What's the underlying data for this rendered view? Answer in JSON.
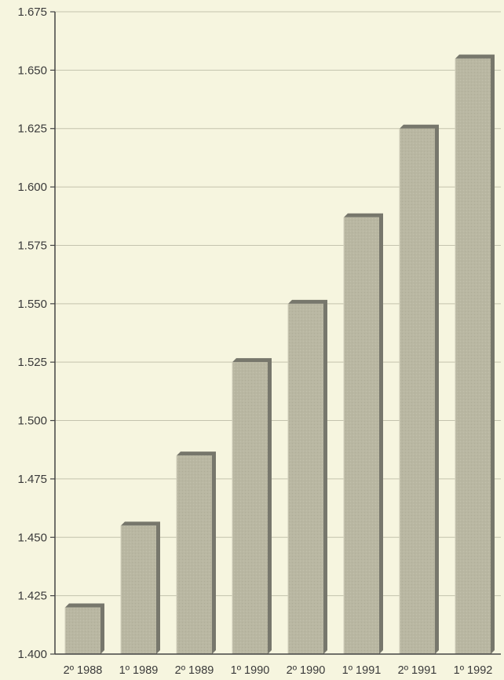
{
  "chart_data": {
    "type": "bar",
    "categories": [
      "2º 1988",
      "1º 1989",
      "2º 1989",
      "1º 1990",
      "2º 1990",
      "1º 1991",
      "2º 1991",
      "1º 1992"
    ],
    "values": [
      1420,
      1455,
      1485,
      1525,
      1550,
      1587,
      1625,
      1655
    ],
    "yticks": [
      "1.400",
      "1.425",
      "1.450",
      "1.475",
      "1.500",
      "1.525",
      "1.550",
      "1.575",
      "1.600",
      "1.625",
      "1.650",
      "1.675"
    ],
    "ylim": [
      1400,
      1675
    ],
    "grid": true,
    "colors": {
      "background": "#f6f5df",
      "bar_front": "#b9b7a2",
      "bar_side": "#77776c",
      "grid": "#c4c3ae",
      "axis": "#444444"
    }
  }
}
